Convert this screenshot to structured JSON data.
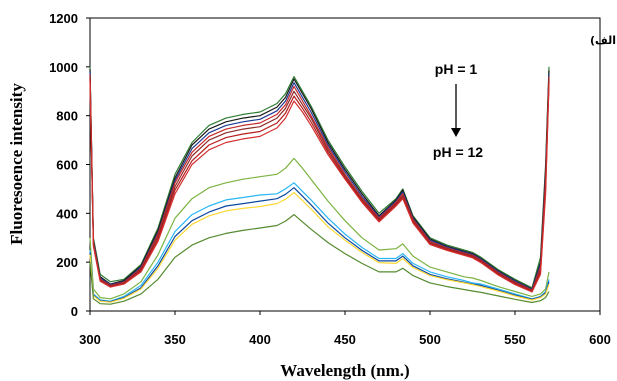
{
  "chart_data": {
    "type": "line",
    "title": "",
    "xlabel": "Wavelength (nm.)",
    "ylabel": "Fluoresoence intensity",
    "xlim": [
      300,
      600
    ],
    "ylim": [
      0,
      1200
    ],
    "x_ticks": [
      300,
      350,
      400,
      450,
      500,
      550,
      600
    ],
    "y_ticks": [
      0,
      200,
      400,
      600,
      800,
      1000,
      1200
    ],
    "grid": false,
    "panel_label": "(الف)",
    "annotation_top": "pH = 1",
    "annotation_bottom": "pH = 12",
    "series": [
      {
        "color": "#2e7d32",
        "x": [
          300,
          302,
          306,
          312,
          320,
          330,
          340,
          350,
          360,
          370,
          380,
          390,
          400,
          410,
          415,
          420,
          425,
          430,
          440,
          450,
          460,
          470,
          480,
          484,
          490,
          500,
          510,
          520,
          525,
          530,
          540,
          550,
          560,
          565,
          568,
          570
        ],
        "y": [
          1000,
          300,
          150,
          120,
          130,
          190,
          340,
          560,
          690,
          760,
          790,
          805,
          815,
          850,
          890,
          960,
          900,
          840,
          700,
          590,
          490,
          400,
          460,
          500,
          390,
          300,
          270,
          250,
          240,
          220,
          170,
          130,
          95,
          220,
          600,
          1000
        ]
      },
      {
        "color": "#1a1a1a",
        "x": [
          300,
          302,
          306,
          312,
          320,
          330,
          340,
          350,
          360,
          370,
          380,
          390,
          400,
          410,
          415,
          420,
          425,
          430,
          440,
          450,
          460,
          470,
          480,
          484,
          490,
          500,
          510,
          520,
          525,
          530,
          540,
          550,
          560,
          565,
          568,
          570
        ],
        "y": [
          990,
          290,
          140,
          110,
          125,
          185,
          330,
          545,
          680,
          745,
          775,
          790,
          800,
          835,
          875,
          950,
          890,
          830,
          690,
          580,
          480,
          390,
          455,
          495,
          385,
          295,
          265,
          245,
          235,
          215,
          165,
          125,
          90,
          200,
          580,
          985
        ]
      },
      {
        "color": "#1f3a93",
        "x": [
          300,
          302,
          306,
          312,
          320,
          330,
          340,
          350,
          360,
          370,
          380,
          390,
          400,
          410,
          415,
          420,
          425,
          430,
          440,
          450,
          460,
          470,
          480,
          484,
          490,
          500,
          510,
          520,
          525,
          530,
          540,
          550,
          560,
          565,
          568,
          570
        ],
        "y": [
          980,
          285,
          135,
          108,
          120,
          180,
          320,
          535,
          665,
          730,
          760,
          775,
          785,
          820,
          860,
          935,
          875,
          815,
          680,
          570,
          470,
          385,
          450,
          488,
          380,
          290,
          262,
          242,
          232,
          212,
          162,
          122,
          88,
          190,
          560,
          970
        ]
      },
      {
        "color": "#c62828",
        "x": [
          300,
          302,
          306,
          312,
          320,
          330,
          340,
          350,
          360,
          370,
          380,
          390,
          400,
          410,
          415,
          420,
          425,
          430,
          440,
          450,
          460,
          470,
          480,
          484,
          490,
          500,
          510,
          520,
          525,
          530,
          540,
          550,
          560,
          565,
          568,
          570
        ],
        "y": [
          970,
          280,
          130,
          105,
          118,
          175,
          315,
          525,
          650,
          715,
          745,
          760,
          770,
          805,
          845,
          920,
          860,
          800,
          670,
          560,
          462,
          380,
          445,
          480,
          375,
          285,
          258,
          238,
          228,
          208,
          158,
          118,
          85,
          180,
          540,
          960
        ]
      },
      {
        "color": "#8e2b2b",
        "x": [
          300,
          302,
          306,
          312,
          320,
          330,
          340,
          350,
          360,
          370,
          380,
          390,
          400,
          410,
          415,
          420,
          425,
          430,
          440,
          450,
          460,
          470,
          480,
          484,
          490,
          500,
          510,
          520,
          525,
          530,
          540,
          550,
          560,
          565,
          568,
          570
        ],
        "y": [
          960,
          275,
          128,
          102,
          115,
          170,
          305,
          510,
          635,
          700,
          730,
          745,
          755,
          790,
          830,
          900,
          845,
          790,
          660,
          552,
          455,
          375,
          440,
          472,
          370,
          280,
          255,
          235,
          225,
          205,
          155,
          115,
          82,
          170,
          520,
          950
        ]
      },
      {
        "color": "#b71c1c",
        "x": [
          300,
          302,
          306,
          312,
          320,
          330,
          340,
          350,
          360,
          370,
          380,
          390,
          400,
          410,
          415,
          420,
          425,
          430,
          440,
          450,
          460,
          470,
          480,
          484,
          490,
          500,
          510,
          520,
          525,
          530,
          540,
          550,
          560,
          565,
          568,
          570
        ],
        "y": [
          950,
          270,
          125,
          100,
          112,
          165,
          295,
          495,
          615,
          680,
          710,
          725,
          735,
          770,
          810,
          880,
          830,
          775,
          650,
          545,
          450,
          370,
          435,
          465,
          365,
          276,
          252,
          232,
          222,
          202,
          152,
          112,
          80,
          160,
          500,
          940
        ]
      },
      {
        "color": "#d32f2f",
        "x": [
          300,
          302,
          306,
          312,
          320,
          330,
          340,
          350,
          360,
          370,
          380,
          390,
          400,
          410,
          415,
          420,
          425,
          430,
          440,
          450,
          460,
          470,
          480,
          484,
          490,
          500,
          510,
          520,
          525,
          530,
          540,
          550,
          560,
          565,
          568,
          570
        ],
        "y": [
          940,
          265,
          122,
          98,
          110,
          160,
          285,
          480,
          600,
          660,
          690,
          705,
          715,
          750,
          790,
          860,
          815,
          760,
          640,
          540,
          445,
          365,
          430,
          460,
          360,
          272,
          248,
          228,
          218,
          198,
          148,
          108,
          78,
          150,
          480,
          930
        ]
      },
      {
        "color": "#7cb342",
        "x": [
          300,
          302,
          306,
          312,
          320,
          330,
          340,
          350,
          360,
          370,
          380,
          390,
          400,
          410,
          415,
          420,
          425,
          430,
          440,
          450,
          460,
          470,
          480,
          484,
          490,
          500,
          510,
          520,
          525,
          530,
          540,
          550,
          560,
          565,
          568,
          570
        ],
        "y": [
          300,
          90,
          55,
          50,
          70,
          120,
          230,
          380,
          460,
          505,
          525,
          540,
          550,
          560,
          585,
          625,
          585,
          540,
          450,
          370,
          300,
          250,
          255,
          275,
          225,
          180,
          160,
          140,
          135,
          125,
          100,
          80,
          60,
          70,
          90,
          160
        ]
      },
      {
        "color": "#29b6f6",
        "x": [
          300,
          302,
          306,
          312,
          320,
          330,
          340,
          350,
          360,
          370,
          380,
          390,
          400,
          410,
          415,
          420,
          425,
          430,
          440,
          450,
          460,
          470,
          480,
          484,
          490,
          500,
          510,
          520,
          525,
          530,
          540,
          550,
          560,
          565,
          568,
          570
        ],
        "y": [
          250,
          70,
          45,
          40,
          60,
          105,
          200,
          325,
          395,
          430,
          455,
          465,
          475,
          480,
          500,
          525,
          490,
          455,
          380,
          315,
          260,
          215,
          215,
          235,
          195,
          160,
          140,
          125,
          115,
          110,
          90,
          70,
          50,
          60,
          80,
          130
        ]
      },
      {
        "color": "#0d47a1",
        "x": [
          300,
          302,
          306,
          312,
          320,
          330,
          340,
          350,
          360,
          370,
          380,
          390,
          400,
          410,
          415,
          420,
          425,
          430,
          440,
          450,
          460,
          470,
          480,
          484,
          490,
          500,
          510,
          520,
          525,
          530,
          540,
          550,
          560,
          565,
          568,
          570
        ],
        "y": [
          240,
          65,
          42,
          38,
          55,
          95,
          185,
          305,
          370,
          405,
          430,
          440,
          450,
          460,
          478,
          505,
          470,
          435,
          360,
          300,
          248,
          205,
          205,
          225,
          185,
          150,
          132,
          118,
          110,
          105,
          85,
          65,
          48,
          58,
          75,
          120
        ]
      },
      {
        "color": "#fdd835",
        "x": [
          300,
          302,
          306,
          312,
          320,
          330,
          340,
          350,
          360,
          370,
          380,
          390,
          400,
          410,
          415,
          420,
          425,
          430,
          440,
          450,
          460,
          470,
          480,
          484,
          490,
          500,
          510,
          520,
          525,
          530,
          540,
          550,
          560,
          565,
          568,
          570
        ],
        "y": [
          230,
          62,
          40,
          36,
          52,
          90,
          175,
          290,
          355,
          390,
          410,
          420,
          428,
          440,
          458,
          485,
          452,
          418,
          345,
          290,
          240,
          198,
          195,
          215,
          178,
          145,
          128,
          115,
          108,
          100,
          82,
          62,
          45,
          55,
          70,
          110
        ]
      },
      {
        "color": "#558b2f",
        "x": [
          300,
          302,
          306,
          312,
          320,
          330,
          340,
          350,
          360,
          370,
          380,
          390,
          400,
          410,
          415,
          420,
          425,
          430,
          440,
          450,
          460,
          470,
          480,
          484,
          490,
          500,
          510,
          520,
          525,
          530,
          540,
          550,
          560,
          565,
          568,
          570
        ],
        "y": [
          200,
          50,
          30,
          28,
          40,
          70,
          130,
          220,
          270,
          300,
          318,
          330,
          340,
          350,
          368,
          395,
          365,
          335,
          280,
          235,
          195,
          160,
          160,
          175,
          145,
          115,
          100,
          88,
          82,
          76,
          62,
          48,
          35,
          42,
          55,
          80
        ]
      }
    ]
  }
}
